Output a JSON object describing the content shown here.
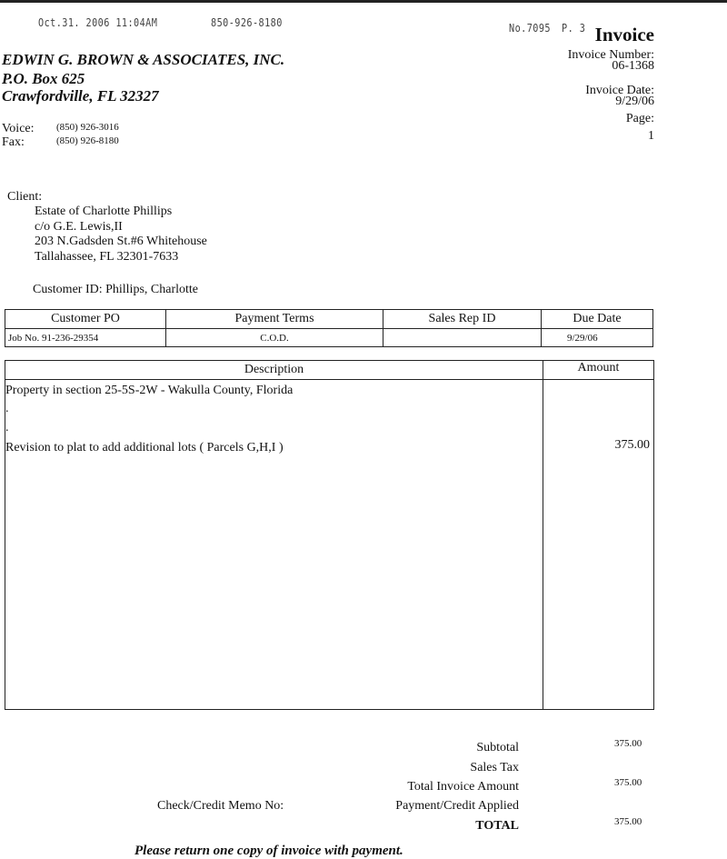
{
  "fax_header": {
    "datetime": "Oct.31. 2006 11:04AM",
    "phone": "850-926-8180",
    "number": "No.7095",
    "page": "P. 3"
  },
  "company": {
    "name": "EDWIN G. BROWN & ASSOCIATES, INC.",
    "address1": "P.O. Box 625",
    "address2": "Crawfordville, FL  32327",
    "voice_label": "Voice:",
    "voice": "(850) 926-3016",
    "fax_label": "Fax:",
    "fax": "(850) 926-8180"
  },
  "invoice": {
    "title": "Invoice",
    "number_label": "Invoice Number:",
    "number": "06-1368",
    "date_label": "Invoice Date:",
    "date": "9/29/06",
    "page_label": "Page:",
    "page": "1"
  },
  "client": {
    "label": "Client:",
    "lines": [
      "Estate of Charlotte Phillips",
      "c/o G.E. Lewis,II",
      "203 N.Gadsden St.#6 Whitehouse",
      "Tallahassee, FL 32301-7633"
    ],
    "customer_id": "Customer ID: Phillips, Charlotte"
  },
  "terms_table": {
    "headers": [
      "Customer PO",
      "Payment Terms",
      "Sales Rep ID",
      "Due Date"
    ],
    "values": [
      "Job No. 91-236-29354",
      "C.O.D.",
      "",
      "9/29/06"
    ]
  },
  "items_table": {
    "headers": [
      "Description",
      "Amount"
    ],
    "rows": [
      {
        "description": "Property in section 25-5S-2W - Wakulla County, Florida",
        "amount": ""
      },
      {
        "description": ".",
        "amount": ""
      },
      {
        "description": ".",
        "amount": ""
      },
      {
        "description": "Revision to plat to add additional lots ( Parcels G,H,I )",
        "amount": "375.00"
      }
    ]
  },
  "totals": {
    "subtotal_label": "Subtotal",
    "subtotal": "375.00",
    "tax_label": "Sales Tax",
    "total_invoice_label": "Total Invoice Amount",
    "total_invoice": "375.00",
    "check_label": "Check/Credit Memo No:",
    "payment_label": "Payment/Credit Applied",
    "total_label": "TOTAL",
    "total": "375.00"
  },
  "footer": "Please return one copy of invoice with payment."
}
